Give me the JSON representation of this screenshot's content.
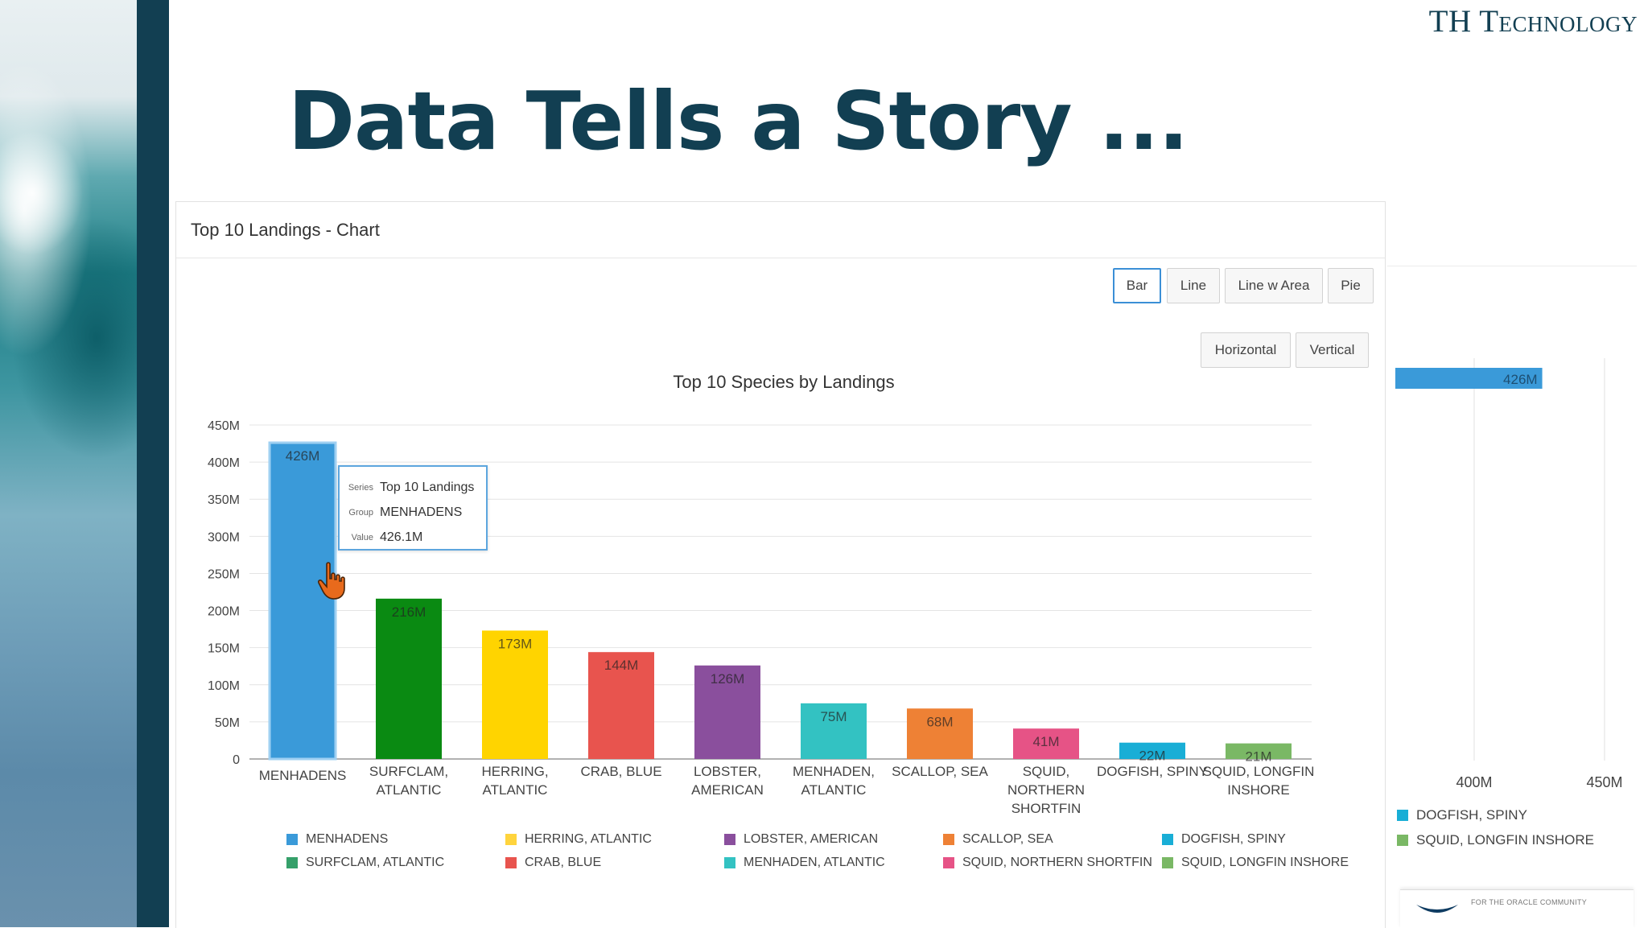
{
  "brand": "TH Technology",
  "slide_title": "Data Tells a Story ...",
  "panel": {
    "title": "Top 10 Landings - Chart",
    "type_buttons": [
      "Bar",
      "Line",
      "Line w Area",
      "Pie"
    ],
    "active_type": "Bar",
    "orientation_buttons": [
      "Horizontal",
      "Vertical"
    ]
  },
  "tooltip": {
    "series_key": "Series",
    "series_value": "Top 10 Landings",
    "group_key": "Group",
    "group_value": "MENHADENS",
    "value_key": "Value",
    "value_value": "426.1M"
  },
  "chart_data": [
    {
      "type": "bar",
      "title": "Top 10 Species by Landings",
      "categories": [
        "MENHADENS",
        "SURFCLAM, ATLANTIC",
        "HERRING, ATLANTIC",
        "CRAB, BLUE",
        "LOBSTER, AMERICAN",
        "MENHADEN, ATLANTIC",
        "SCALLOP, SEA",
        "SQUID, NORTHERN SHORTFIN",
        "DOGFISH, SPINY",
        "SQUID, LONGFIN INSHORE"
      ],
      "category_lines": [
        [
          "MENHADENS"
        ],
        [
          "SURFCLAM,",
          "ATLANTIC"
        ],
        [
          "HERRING,",
          "ATLANTIC"
        ],
        [
          "CRAB, BLUE"
        ],
        [
          "LOBSTER,",
          "AMERICAN"
        ],
        [
          "MENHADEN,",
          "ATLANTIC"
        ],
        [
          "SCALLOP, SEA"
        ],
        [
          "SQUID,",
          "NORTHERN",
          "SHORTFIN"
        ],
        [
          "DOGFISH, SPINY"
        ],
        [
          "SQUID, LONGFIN",
          "INSHORE"
        ]
      ],
      "series": [
        {
          "name": "Top 10 Landings",
          "values": [
            426.1,
            216,
            173,
            144,
            126,
            75,
            68,
            41,
            22,
            21
          ]
        }
      ],
      "data_labels": [
        "426M",
        "216M",
        "173M",
        "144M",
        "126M",
        "75M",
        "68M",
        "41M",
        "22M",
        "21M"
      ],
      "colors": [
        "#3a9ad9",
        "#0a8a12",
        "#ffd400",
        "#e8544e",
        "#8a4f9d",
        "#33c2c2",
        "#ee8135",
        "#e65386",
        "#19aed6",
        "#7ab865"
      ],
      "legend_colors": [
        "#3a9ad9",
        "#35a06a",
        "#ffd43d",
        "#e8544e",
        "#8a4f9d",
        "#33c2c2",
        "#ee8135",
        "#e65386",
        "#19aed6",
        "#7ab865"
      ],
      "y_ticks": [
        "0",
        "50M",
        "100M",
        "150M",
        "200M",
        "250M",
        "300M",
        "350M",
        "400M",
        "450M"
      ],
      "ylim": [
        0,
        450
      ],
      "grid": true,
      "legend_position": "bottom"
    },
    {
      "type": "bar",
      "orientation": "horizontal",
      "visible_bar_label": "426M",
      "visible_bar_value": 426.1,
      "x_ticks": [
        "400M",
        "450M"
      ],
      "legend": [
        "DOGFISH, SPINY",
        "SQUID, LONGFIN INSHORE"
      ],
      "legend_colors": [
        "#19aed6",
        "#7ab865"
      ]
    }
  ],
  "footer_logo_text": "FOR THE ORACLE COMMUNITY"
}
